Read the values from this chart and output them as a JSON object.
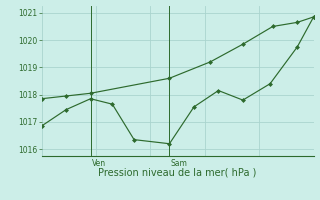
{
  "background_color": "#cceee8",
  "grid_color": "#aad4ce",
  "line_color": "#2d6a2d",
  "marker_color": "#2d6a2d",
  "xlabel": "Pression niveau de la mer( hPa )",
  "ylim": [
    1015.75,
    1021.25
  ],
  "yticks": [
    1016,
    1017,
    1018,
    1019,
    1020,
    1021
  ],
  "vline_x": [
    0.18,
    0.47
  ],
  "vline_labels": [
    "Ven",
    "Sam"
  ],
  "series1_x": [
    0.0,
    0.09,
    0.18,
    0.47,
    0.62,
    0.74,
    0.85,
    0.94,
    1.0
  ],
  "series1_y": [
    1017.85,
    1017.95,
    1018.05,
    1018.6,
    1019.2,
    1019.85,
    1020.5,
    1020.65,
    1020.85
  ],
  "series2_x": [
    0.0,
    0.09,
    0.18,
    0.26,
    0.34,
    0.47,
    0.56,
    0.65,
    0.74,
    0.84,
    0.94,
    1.0
  ],
  "series2_y": [
    1016.85,
    1017.45,
    1017.85,
    1017.65,
    1016.35,
    1016.2,
    1017.55,
    1018.15,
    1017.8,
    1018.4,
    1019.75,
    1020.85
  ]
}
